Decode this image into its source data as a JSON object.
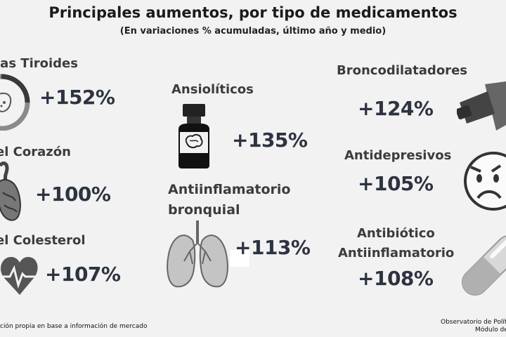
{
  "header": {
    "title": "Principales aumentos, por tipo de medicamentos",
    "subtitle": "(En variaciones % acumuladas, último año y medio)"
  },
  "categories": [
    {
      "label": "las Tiroides",
      "value": "+152%",
      "icon": "thyroid-icon"
    },
    {
      "label": "el Corazón",
      "value": "+100%",
      "icon": "heart-organ-icon"
    },
    {
      "label": "el Colesterol",
      "value": "+107%",
      "icon": "heartbeat-icon"
    },
    {
      "label": "Ansiolíticos",
      "value": "+135%",
      "icon": "brain-bottle-icon"
    },
    {
      "label_line1": "Antiinflamatorio",
      "label_line2": "bronquial",
      "value": "+113%",
      "icon": "lungs-icon"
    },
    {
      "label": "Broncodilatadores",
      "value": "+124%",
      "icon": "inhaler-icon"
    },
    {
      "label": "Antidepresivos",
      "value": "+105%",
      "icon": "sad-face-icon"
    },
    {
      "label_line1": "Antibiótico",
      "label_line2": "Antiinflamatorio",
      "value": "+108%",
      "icon": "capsule-icon"
    }
  ],
  "footer": {
    "source": "ción propia en base a información de mercado",
    "credit_line1": "Observatorio de Políticas",
    "credit_line2": "Módulo de E"
  }
}
